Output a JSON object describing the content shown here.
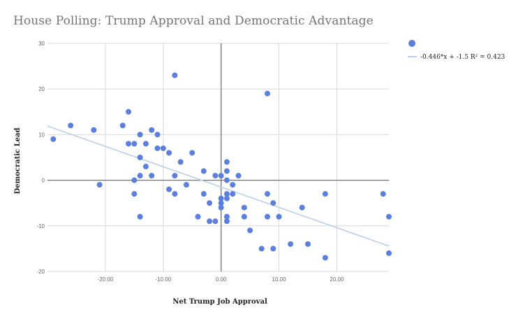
{
  "chart_data": {
    "type": "scatter",
    "title": "House Polling: Trump Approval and Democratic Advantage",
    "xlabel": "Net Trump Job Approval",
    "ylabel": "Democratic Lead",
    "xlim": [
      -30,
      29
    ],
    "ylim": [
      -20,
      30
    ],
    "x_ticks": [
      -20,
      -10,
      0,
      10,
      20
    ],
    "x_tick_labels": [
      "-20.00",
      "-10.00",
      "0.00",
      "10.00",
      "20.00"
    ],
    "y_ticks": [
      -20,
      -10,
      0,
      10,
      20,
      30
    ],
    "y_tick_labels": [
      "-20",
      "-10",
      "0",
      "10",
      "20",
      "30"
    ],
    "grid": true,
    "legend_position": "top-right",
    "series": [
      {
        "color": "#5b7fde",
        "points": [
          [
            -29,
            9
          ],
          [
            -26,
            12
          ],
          [
            -22,
            11
          ],
          [
            -21,
            -1
          ],
          [
            -17,
            12
          ],
          [
            -16,
            15
          ],
          [
            -16,
            8
          ],
          [
            -15,
            8
          ],
          [
            -15,
            0
          ],
          [
            -15,
            -3
          ],
          [
            -14,
            10
          ],
          [
            -14,
            5
          ],
          [
            -14,
            1
          ],
          [
            -14,
            -8
          ],
          [
            -13,
            8
          ],
          [
            -13,
            3
          ],
          [
            -12,
            11
          ],
          [
            -12,
            1
          ],
          [
            -11,
            10
          ],
          [
            -11,
            7
          ],
          [
            -10,
            7
          ],
          [
            -9,
            6
          ],
          [
            -9,
            -2
          ],
          [
            -8,
            23
          ],
          [
            -8,
            1
          ],
          [
            -8,
            -3
          ],
          [
            -7,
            4
          ],
          [
            -6,
            -1
          ],
          [
            -5,
            6
          ],
          [
            -4,
            -8
          ],
          [
            -3,
            2
          ],
          [
            -3,
            -3
          ],
          [
            -2,
            -5
          ],
          [
            -2,
            -9
          ],
          [
            -1,
            1
          ],
          [
            -1,
            -9
          ],
          [
            0,
            1
          ],
          [
            0,
            -4
          ],
          [
            0,
            -5
          ],
          [
            0,
            -6
          ],
          [
            1,
            4
          ],
          [
            1,
            2
          ],
          [
            1,
            0
          ],
          [
            1,
            -3
          ],
          [
            1,
            -4
          ],
          [
            1,
            -8
          ],
          [
            1,
            -9
          ],
          [
            2,
            -1
          ],
          [
            2,
            -3
          ],
          [
            3,
            1
          ],
          [
            4,
            -6
          ],
          [
            4,
            -8
          ],
          [
            5,
            -11
          ],
          [
            7,
            -15
          ],
          [
            8,
            19
          ],
          [
            8,
            -3
          ],
          [
            8,
            -8
          ],
          [
            9,
            -5
          ],
          [
            9,
            -15
          ],
          [
            10,
            -8
          ],
          [
            12,
            -14
          ],
          [
            14,
            -6
          ],
          [
            15,
            -14
          ],
          [
            18,
            -3
          ],
          [
            18,
            -17
          ],
          [
            28,
            -3
          ],
          [
            29,
            -8
          ],
          [
            29,
            -16
          ]
        ]
      }
    ],
    "trendline": {
      "slope": -0.446,
      "intercept": -1.5,
      "r_squared": 0.423,
      "label": "-0.446*x + -1.5 R² = 0.423",
      "color": "#b9d0ec"
    }
  }
}
